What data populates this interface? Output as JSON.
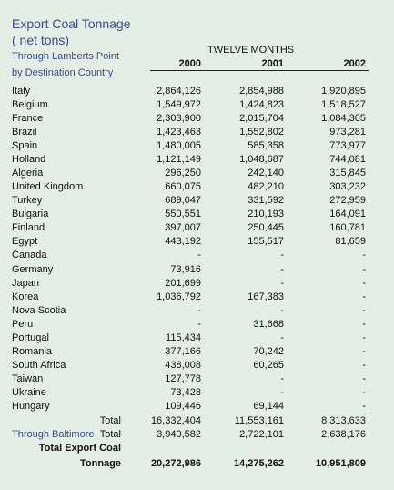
{
  "header": {
    "title": "Export Coal Tonnage",
    "unit": "( net tons)",
    "note_lines": [
      "Through Lamberts Point",
      "by Destination Country"
    ],
    "period": "TWELVE MONTHS",
    "columns": [
      "2000",
      "2001",
      "2002"
    ]
  },
  "table": {
    "rows": [
      [
        "Italy",
        "2,864,126",
        "2,854,988",
        "1,920,895"
      ],
      [
        "Belgium",
        "1,549,972",
        "1,424,823",
        "1,518,527"
      ],
      [
        "France",
        "2,303,900",
        "2,015,704",
        "1,084,305"
      ],
      [
        "Brazil",
        "1,423,463",
        "1,552,802",
        "973,281"
      ],
      [
        "Spain",
        "1,480,005",
        "585,358",
        "773,977"
      ],
      [
        "Holland",
        "1,121,149",
        "1,048,687",
        "744,081"
      ],
      [
        "Algeria",
        "296,250",
        "242,140",
        "315,845"
      ],
      [
        "United Kingdom",
        "660,075",
        "482,210",
        "303,232"
      ],
      [
        "Turkey",
        "689,047",
        "331,592",
        "272,959"
      ],
      [
        "Bulgaria",
        "550,551",
        "210,193",
        "164,091"
      ],
      [
        "Finland",
        "397,007",
        "250,445",
        "160,781"
      ],
      [
        "Egypt",
        "443,192",
        "155,517",
        "81,659"
      ],
      [
        "Canada",
        "-",
        "-",
        "-"
      ],
      [
        "Germany",
        "73,916",
        "-",
        "-"
      ],
      [
        "Japan",
        "201,699",
        "-",
        "-"
      ],
      [
        "Korea",
        "1,036,792",
        "167,383",
        "-"
      ],
      [
        "Nova Scotia",
        "-",
        "-",
        "-"
      ],
      [
        "Peru",
        "-",
        "31,668",
        "-"
      ],
      [
        "Portugal",
        "115,434",
        "-",
        "-"
      ],
      [
        "Romania",
        "377,166",
        "70,242",
        "-"
      ],
      [
        "South Africa",
        "438,008",
        "60,265",
        "-"
      ],
      [
        "Taiwan",
        "127,778",
        "-",
        "-"
      ],
      [
        "Ukraine",
        "73,428",
        "-",
        "-"
      ],
      [
        "Hungary",
        "109,446",
        "69,144",
        "-"
      ]
    ],
    "total": {
      "label": "Total",
      "values": [
        "16,332,404",
        "11,553,161",
        "8,313,633"
      ]
    },
    "baltimore": {
      "label": "Through Baltimore",
      "sublabel": "Total",
      "values": [
        "3,940,582",
        "2,722,101",
        "2,638,176"
      ]
    },
    "grand_total": {
      "label_lines": [
        "Total Export Coal",
        "Tonnage"
      ],
      "values": [
        "20,272,986",
        "14,275,262",
        "10,951,809"
      ]
    }
  }
}
